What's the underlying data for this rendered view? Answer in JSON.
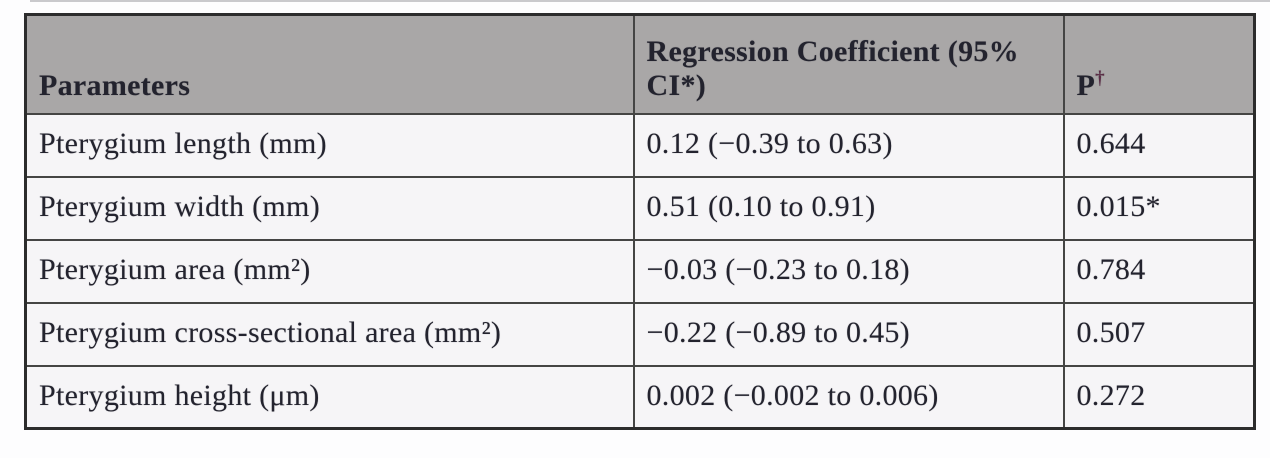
{
  "table": {
    "header": {
      "parameters": "Parameters",
      "regression": "Regression Coefficient (95% CI*)",
      "p_label": "P",
      "p_sup": "†"
    },
    "rows": [
      {
        "param": "Pterygium length (mm)",
        "coef": "0.12 (−0.39 to 0.63)",
        "p": "0.644"
      },
      {
        "param": "Pterygium width (mm)",
        "coef": "0.51 (0.10 to 0.91)",
        "p": "0.015*"
      },
      {
        "param": "Pterygium area (mm²)",
        "coef": "−0.03 (−0.23 to 0.18)",
        "p": "0.784"
      },
      {
        "param": "Pterygium cross-sectional area (mm²)",
        "coef": "−0.22 (−0.89 to 0.45)",
        "p": "0.507"
      },
      {
        "param": "Pterygium height (μm)",
        "coef": "0.002 (−0.002 to 0.006)",
        "p": "0.272"
      }
    ],
    "colors": {
      "header_bg": "#a9a7a7",
      "cell_bg": "#f6f5f7",
      "outer_border": "#2c2c2c",
      "inner_border": "#454544",
      "text": "#23232e",
      "dagger": "#5a2c45"
    }
  },
  "chart_data": {
    "type": "table",
    "columns": [
      "Parameters",
      "Regression Coefficient (95% CI*)",
      "P†"
    ],
    "rows": [
      [
        "Pterygium length (mm)",
        "0.12 (−0.39 to 0.63)",
        "0.644"
      ],
      [
        "Pterygium width (mm)",
        "0.51 (0.10 to 0.91)",
        "0.015*"
      ],
      [
        "Pterygium area (mm²)",
        "−0.03 (−0.23 to 0.18)",
        "0.784"
      ],
      [
        "Pterygium cross-sectional area (mm²)",
        "−0.22 (−0.89 to 0.45)",
        "0.507"
      ],
      [
        "Pterygium height (μm)",
        "0.002 (−0.002 to 0.006)",
        "0.272"
      ]
    ]
  }
}
